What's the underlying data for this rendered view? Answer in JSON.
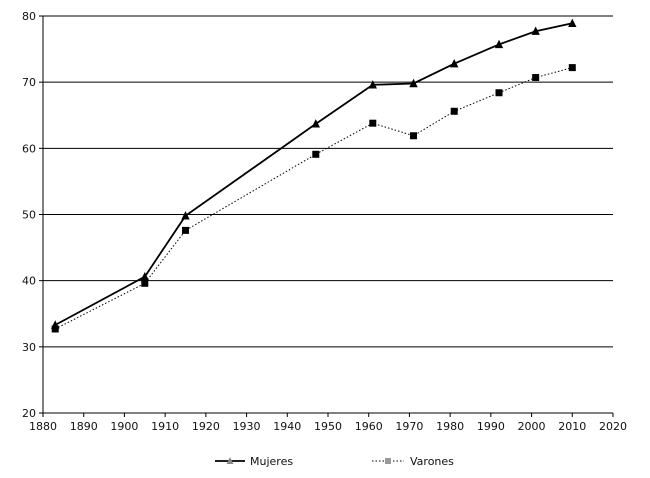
{
  "chart_data": {
    "type": "line",
    "x_ticks": [
      "1880",
      "1890",
      "1900",
      "1910",
      "1920",
      "1930",
      "1940",
      "1950",
      "1960",
      "1970",
      "1980",
      "1990",
      "2000",
      "2010",
      "2020"
    ],
    "y_ticks": [
      "20",
      "30",
      "40",
      "50",
      "60",
      "70",
      "80"
    ],
    "xlim": [
      1880,
      2020
    ],
    "ylim": [
      20,
      80
    ],
    "grid": "horizontal",
    "legend_position": "bottom",
    "series": [
      {
        "name": "Mujeres",
        "style": "solid",
        "marker": "triangle",
        "color": "#000000",
        "x": [
          1883,
          1905,
          1915,
          1947,
          1961,
          1971,
          1981,
          1992,
          2001,
          2010
        ],
        "y": [
          33.3,
          40.6,
          49.8,
          63.7,
          69.6,
          69.8,
          72.8,
          75.7,
          77.7,
          78.9
        ]
      },
      {
        "name": "Varones",
        "style": "dotted",
        "marker": "square",
        "color": "#000000",
        "x": [
          1883,
          1905,
          1915,
          1947,
          1961,
          1971,
          1981,
          1992,
          2001,
          2010
        ],
        "y": [
          32.7,
          39.6,
          47.6,
          59.1,
          63.8,
          61.9,
          65.6,
          68.4,
          70.7,
          72.2
        ]
      }
    ]
  }
}
